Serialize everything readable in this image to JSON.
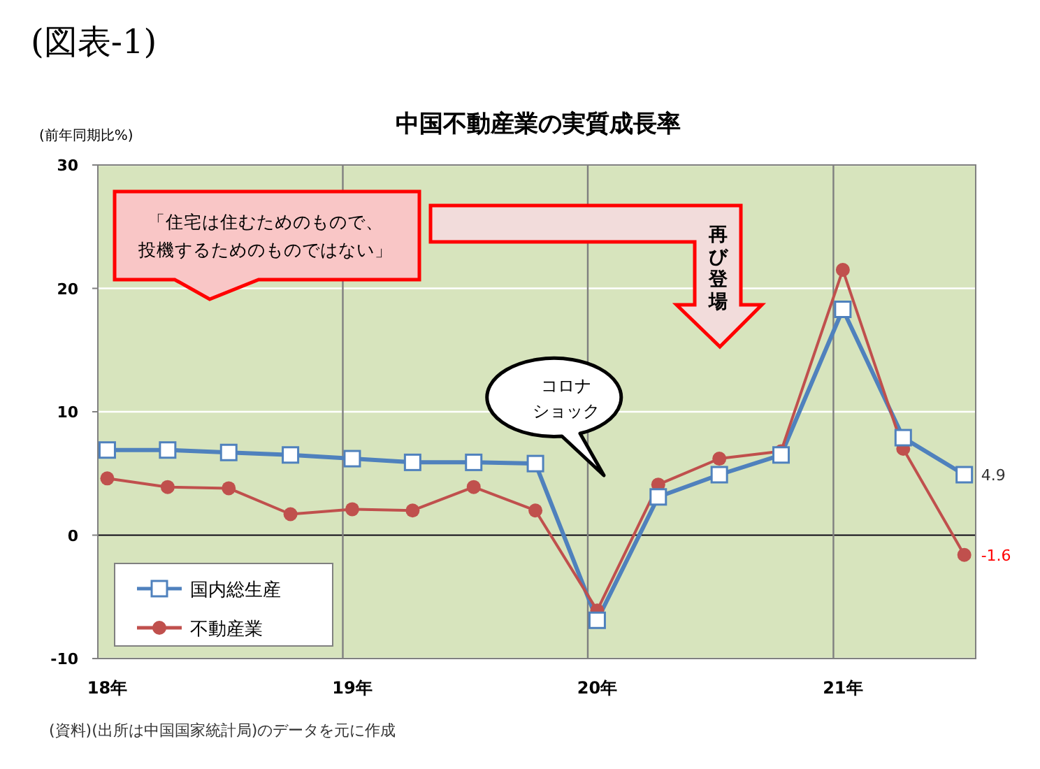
{
  "chart_data": {
    "type": "line",
    "title": "中国不動産業の実質成長率",
    "ylabel": "(前年同期比%)",
    "annotations": [
      "(図表-1)",
      "「住宅は住むためのもので、",
      "投機するためのものではない」",
      "再び登場",
      "コロナ",
      "ショック",
      "(資料)(出所は中国国家統計局)のデータを元に作成"
    ],
    "x": [
      "2018-01-15",
      "2018-04-15",
      "2018-07-15",
      "2018-10-15",
      "2019-01-15",
      "2019-04-15",
      "2019-07-15",
      "2019-10-15",
      "2020-01-15",
      "2020-04-15",
      "2020-07-15",
      "2020-10-15",
      "2021-01-15",
      "2021-04-15",
      "2021-07-15"
    ],
    "xlim": [
      "2018-01-01",
      "2021-08-01"
    ],
    "xticks": [
      {
        "value": "2018-01-15",
        "label": "18年"
      },
      {
        "value": "2019-01-15",
        "label": "19年"
      },
      {
        "value": "2020-01-15",
        "label": "20年"
      },
      {
        "value": "2021-01-15",
        "label": "21年"
      }
    ],
    "ylim": [
      -10,
      30
    ],
    "yticks": [
      -10,
      0,
      10,
      20,
      30
    ],
    "grid": "y",
    "legend": "bottom left",
    "ref_lines": [
      {
        "axis": "y",
        "value": 0,
        "color": "#000000"
      },
      {
        "axis": "x",
        "value": "2019-01-01",
        "color": "#7f7f7f"
      },
      {
        "axis": "x",
        "value": "2020-01-01",
        "color": "#7f7f7f"
      },
      {
        "axis": "x",
        "value": "2021-01-01",
        "color": "#7f7f7f"
      }
    ],
    "series": [
      {
        "name": "国内総生産",
        "color": "#4f81bd",
        "marker": "square",
        "values": [
          6.9,
          6.9,
          6.7,
          6.5,
          6.2,
          5.9,
          5.9,
          5.8,
          -6.9,
          3.1,
          4.9,
          6.5,
          18.3,
          7.9,
          4.9
        ],
        "value_labels": [
          null,
          null,
          null,
          null,
          null,
          null,
          null,
          null,
          null,
          null,
          null,
          null,
          null,
          null,
          "4.9"
        ]
      },
      {
        "name": "不動産業",
        "color": "#c0504d",
        "marker": "circle",
        "values": [
          4.6,
          3.9,
          3.8,
          1.7,
          2.1,
          2.0,
          3.9,
          2.0,
          -6.1,
          4.1,
          6.2,
          6.8,
          21.5,
          7.0,
          -1.6
        ],
        "value_labels": [
          null,
          null,
          null,
          null,
          null,
          null,
          null,
          null,
          null,
          null,
          null,
          null,
          null,
          null,
          "-1.6"
        ]
      }
    ]
  }
}
